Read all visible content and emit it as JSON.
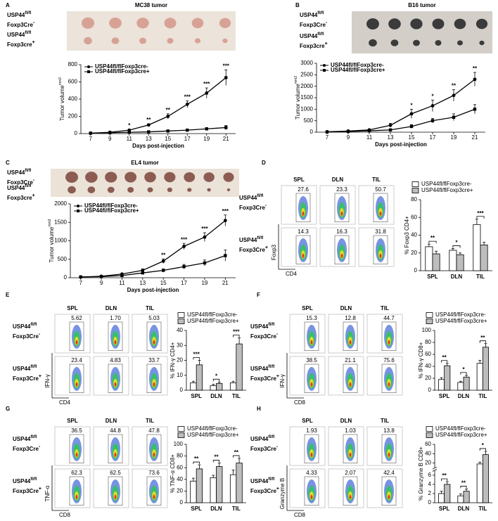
{
  "photo_panels": [
    {
      "letter": "A",
      "title": "MC38 tumor",
      "rows": [
        {
          "gene": "USP44",
          "gene_sup": "fl/fl",
          "driver": "Foxp3Cre",
          "driver_sup": "-"
        },
        {
          "gene": "USP44",
          "gene_sup": "fl/fl",
          "driver": "Foxp3cre",
          "driver_sup": "+"
        }
      ]
    },
    {
      "letter": "B",
      "title": "B16 tumor",
      "rows": [
        {
          "gene": "USP44",
          "gene_sup": "fl/fl",
          "driver": "Foxp3Cre",
          "driver_sup": "-"
        },
        {
          "gene": "USP44",
          "gene_sup": "fl/fl",
          "driver": "Foxp3cre",
          "driver_sup": "+"
        }
      ]
    },
    {
      "letter": "C",
      "title": "EL4 tumor",
      "rows": [
        {
          "gene": "USP44",
          "gene_sup": "fl/fl",
          "driver": "Foxp3Cre",
          "driver_sup": "-"
        },
        {
          "gene": "USP44",
          "gene_sup": "fl/fl",
          "driver": "Foxp3cre",
          "driver_sup": "+"
        }
      ]
    }
  ],
  "flow_panels": [
    {
      "letter": "D",
      "columns": [
        "SPL",
        "DLN",
        "TIL"
      ],
      "y_marker": "Foxp3",
      "x_marker": "CD4",
      "rows": [
        {
          "gene": "USP44",
          "gene_sup": "fl/fl",
          "driver": "Foxp3Cre",
          "driver_sup": "-"
        },
        {
          "gene": "USP44",
          "gene_sup": "fl/fl",
          "driver": "Foxp3Cre",
          "driver_sup": "+"
        }
      ],
      "percentages": [
        [
          "27.6",
          "23.3",
          "50.7"
        ],
        [
          "14.3",
          "16.3",
          "31.8"
        ]
      ]
    },
    {
      "letter": "E",
      "columns": [
        "SPL",
        "DLN",
        "TIL"
      ],
      "y_marker": "IFN-γ",
      "x_marker": "CD4",
      "rows": [
        {
          "gene": "USP44",
          "gene_sup": "fl/fl",
          "driver": "Foxp3Cre",
          "driver_sup": "-"
        },
        {
          "gene": "USP44",
          "gene_sup": "fl/fl",
          "driver": "Foxp3Cre",
          "driver_sup": "+"
        }
      ],
      "percentages": [
        [
          "5.62",
          "1.70",
          "5.03"
        ],
        [
          "23.4",
          "4.83",
          "33.7"
        ]
      ]
    },
    {
      "letter": "F",
      "columns": [
        "SPL",
        "DLN",
        "TIL"
      ],
      "y_marker": "IFN-γ",
      "x_marker": "CD8",
      "rows": [
        {
          "gene": "USP44",
          "gene_sup": "fl/fl",
          "driver": "Foxp3Cre",
          "driver_sup": "-"
        },
        {
          "gene": "USP44",
          "gene_sup": "fl/fl",
          "driver": "Foxp3Cre",
          "driver_sup": "+"
        }
      ],
      "percentages": [
        [
          "15.3",
          "12.8",
          "44.7"
        ],
        [
          "38.5",
          "21.1",
          "75.6"
        ]
      ]
    },
    {
      "letter": "G",
      "columns": [
        "SPL",
        "DLN",
        "TIL"
      ],
      "y_marker": "TNF-α",
      "x_marker": "CD8",
      "rows": [
        {
          "gene": "USP44",
          "gene_sup": "fl/fl",
          "driver": "Foxp3Cre",
          "driver_sup": "-"
        },
        {
          "gene": "USP44",
          "gene_sup": "fl/fl",
          "driver": "Foxp3Cre",
          "driver_sup": "+"
        }
      ],
      "percentages": [
        [
          "36.5",
          "44.8",
          "47.8"
        ],
        [
          "62.3",
          "62.5",
          "73.6"
        ]
      ]
    },
    {
      "letter": "H",
      "columns": [
        "SPL",
        "DLN",
        "TIL"
      ],
      "y_marker": "Granzyme B",
      "x_marker": "CD8",
      "rows": [
        {
          "gene": "USP44",
          "gene_sup": "fl/fl",
          "driver": "Foxp3Cre",
          "driver_sup": "-"
        },
        {
          "gene": "USP44",
          "gene_sup": "fl/fl",
          "driver": "Foxp3Cre",
          "driver_sup": "+"
        }
      ],
      "percentages": [
        [
          "1.93",
          "1.03",
          "13.8"
        ],
        [
          "4.33",
          "2.07",
          "42.4"
        ]
      ]
    }
  ],
  "chart_data": [
    {
      "type": "line",
      "x": [
        7,
        9,
        11,
        13,
        15,
        17,
        19,
        21
      ],
      "xlim": [
        6,
        22
      ],
      "xticks": [
        7,
        9,
        11,
        13,
        15,
        17,
        19,
        21
      ],
      "ylim": [
        0,
        800
      ],
      "yticks": [
        0,
        200,
        400,
        600,
        800
      ],
      "ylabel": "Tumor volume",
      "ylabel_sup": "mm3",
      "xlabel": "Days post-injection",
      "series": [
        {
          "name": "USP44fl/flFoxp3cre-",
          "color": "#000000",
          "marker": "circle",
          "values": [
            5,
            15,
            40,
            100,
            200,
            340,
            470,
            650
          ],
          "errors": [
            2,
            5,
            10,
            15,
            30,
            40,
            60,
            90
          ]
        },
        {
          "name": "USP44fl/flFoxp3cre+",
          "color": "#000000",
          "marker": "square",
          "values": [
            5,
            10,
            15,
            20,
            30,
            40,
            55,
            70
          ],
          "errors": [
            2,
            3,
            5,
            5,
            8,
            10,
            15,
            25
          ]
        }
      ],
      "annotations": [
        {
          "x": 11,
          "text": "*"
        },
        {
          "x": 13,
          "text": "**"
        },
        {
          "x": 15,
          "text": "**"
        },
        {
          "x": 17,
          "text": "***"
        },
        {
          "x": 19,
          "text": "***"
        },
        {
          "x": 21,
          "text": "***"
        }
      ]
    },
    {
      "type": "line",
      "x": [
        7,
        9,
        11,
        13,
        15,
        17,
        19,
        21
      ],
      "xlim": [
        6,
        22
      ],
      "xticks": [
        7,
        9,
        11,
        13,
        15,
        17,
        19,
        21
      ],
      "ylim": [
        0,
        3000
      ],
      "yticks": [
        0,
        500,
        1000,
        1500,
        2000,
        2500,
        3000
      ],
      "ylabel": "Tumor volume",
      "ylabel_sup": "mm3",
      "xlabel": "Days post-injection",
      "series": [
        {
          "name": "USP44fl/flFoxp3cre-",
          "color": "#000000",
          "marker": "circle",
          "values": [
            20,
            50,
            100,
            300,
            800,
            1150,
            1600,
            2300
          ],
          "errors": [
            10,
            20,
            40,
            80,
            200,
            250,
            250,
            300
          ]
        },
        {
          "name": "USP44fl/flFoxp3cre+",
          "color": "#000000",
          "marker": "square",
          "values": [
            10,
            30,
            60,
            100,
            250,
            500,
            650,
            1000
          ],
          "errors": [
            5,
            10,
            20,
            40,
            80,
            100,
            150,
            200
          ]
        }
      ],
      "annotations": [
        {
          "x": 15,
          "text": "*"
        },
        {
          "x": 17,
          "text": "*"
        },
        {
          "x": 19,
          "text": "**"
        },
        {
          "x": 21,
          "text": "**"
        }
      ]
    },
    {
      "type": "line",
      "x": [
        7,
        9,
        11,
        13,
        15,
        17,
        19,
        21
      ],
      "xlim": [
        6,
        22
      ],
      "xticks": [
        7,
        9,
        11,
        13,
        15,
        17,
        19,
        21
      ],
      "ylim": [
        0,
        2000
      ],
      "yticks": [
        0,
        500,
        1000,
        1500,
        2000
      ],
      "ylabel": "Tumor volume",
      "ylabel_sup": "mm3",
      "xlabel": "Days post-injection",
      "series": [
        {
          "name": "USP44fl/flFoxp3cre-",
          "color": "#000000",
          "marker": "circle",
          "values": [
            20,
            40,
            100,
            200,
            450,
            850,
            1100,
            1550
          ],
          "errors": [
            5,
            10,
            20,
            40,
            60,
            80,
            120,
            150
          ]
        },
        {
          "name": "USP44fl/flFoxp3cre+",
          "color": "#000000",
          "marker": "square",
          "values": [
            20,
            30,
            60,
            130,
            200,
            300,
            400,
            600
          ],
          "errors": [
            5,
            10,
            15,
            30,
            40,
            60,
            80,
            150
          ]
        }
      ],
      "annotations": [
        {
          "x": 15,
          "text": "**"
        },
        {
          "x": 17,
          "text": "***"
        },
        {
          "x": 19,
          "text": "***"
        },
        {
          "x": 21,
          "text": "***"
        }
      ]
    },
    {
      "type": "bar",
      "categories": [
        "SPL",
        "DLN",
        "TIL"
      ],
      "ylim": [
        0,
        80
      ],
      "yticks": [
        0,
        20,
        40,
        60,
        80
      ],
      "ylabel": "% Foxp3 CD4+",
      "series": [
        {
          "name": "USP44fl/flFoxp3cre-",
          "color": "#ffffff",
          "values": [
            27,
            23,
            52
          ],
          "errors": [
            3,
            2,
            6
          ]
        },
        {
          "name": "USP44fl/flFoxp3cre+",
          "color": "#bdbdbd",
          "values": [
            19,
            18,
            29
          ],
          "errors": [
            3,
            2,
            3
          ]
        }
      ],
      "significance": [
        "**",
        "*",
        "***"
      ]
    },
    {
      "type": "bar",
      "categories": [
        "SPL",
        "DLN",
        "TIL"
      ],
      "ylim": [
        0,
        40
      ],
      "yticks": [
        0,
        10,
        20,
        30,
        40
      ],
      "ylabel": "% IFN-γ CD4+",
      "series": [
        {
          "name": "USP44fl/flFoxp3cre-",
          "color": "#ffffff",
          "values": [
            5,
            3,
            5
          ],
          "errors": [
            1,
            1,
            1
          ]
        },
        {
          "name": "USP44fl/flFoxp3cre+",
          "color": "#bdbdbd",
          "values": [
            17,
            4.5,
            31
          ],
          "errors": [
            3,
            1,
            4
          ]
        }
      ],
      "significance": [
        "***",
        "*",
        "***"
      ]
    },
    {
      "type": "bar",
      "categories": [
        "SPL",
        "DLN",
        "TIL"
      ],
      "ylim": [
        0,
        100
      ],
      "yticks": [
        0,
        20,
        40,
        60,
        80,
        100
      ],
      "ylabel": "% IFN-γ CD8+",
      "series": [
        {
          "name": "USP44fl/flFoxp3cre-",
          "color": "#ffffff",
          "values": [
            18,
            13,
            45
          ],
          "errors": [
            3,
            2,
            5
          ]
        },
        {
          "name": "USP44fl/flFoxp3cre+",
          "color": "#bdbdbd",
          "values": [
            41,
            22,
            72
          ],
          "errors": [
            4,
            3,
            6
          ]
        }
      ],
      "significance": [
        "**",
        "*",
        "**"
      ]
    },
    {
      "type": "bar",
      "categories": [
        "SPL",
        "DLN",
        "TIL"
      ],
      "ylim": [
        0,
        100
      ],
      "yticks": [
        0,
        20,
        40,
        60,
        80,
        100
      ],
      "ylabel": "% TNF-α CD8+",
      "series": [
        {
          "name": "USP44fl/flFoxp3cre-",
          "color": "#ffffff",
          "values": [
            37,
            43,
            48
          ],
          "errors": [
            5,
            4,
            8
          ]
        },
        {
          "name": "USP44fl/flFoxp3cre+",
          "color": "#bdbdbd",
          "values": [
            58,
            62,
            68
          ],
          "errors": [
            7,
            6,
            8
          ]
        }
      ],
      "significance": [
        "**",
        "**",
        "**"
      ]
    },
    {
      "type": "bar",
      "categories": [
        "SPL",
        "DLN",
        "TIL"
      ],
      "ylim": [
        0,
        60
      ],
      "yticks": [
        0,
        2,
        4,
        6,
        20,
        40,
        60
      ],
      "axis_break": [
        7,
        10
      ],
      "ylabel": "% Granzyme B CD8+",
      "series": [
        {
          "name": "USP44fl/flFoxp3cre-",
          "color": "#ffffff",
          "values": [
            2,
            1.5,
            18
          ],
          "errors": [
            0.5,
            0.4,
            4
          ]
        },
        {
          "name": "USP44fl/flFoxp3cre+",
          "color": "#bdbdbd",
          "values": [
            4,
            2.5,
            38
          ],
          "errors": [
            0.6,
            0.5,
            7
          ]
        }
      ],
      "significance": [
        "**",
        "**",
        "*"
      ]
    }
  ]
}
